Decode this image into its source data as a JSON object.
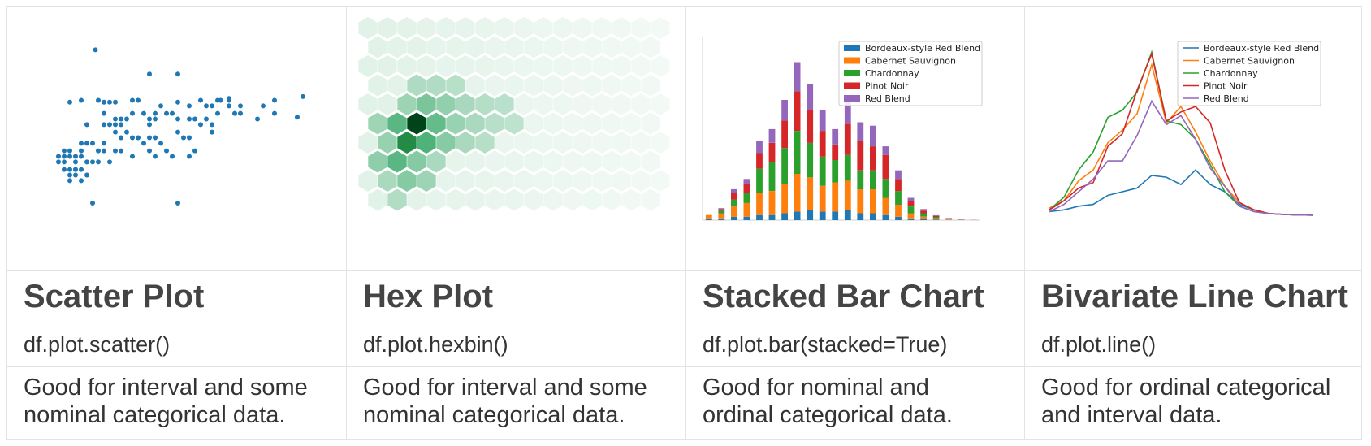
{
  "columns": [
    {
      "title": "Scatter Plot",
      "code": "df.plot.scatter()",
      "desc_line1": "Good for interval and some",
      "desc_line2": "nominal categorical data."
    },
    {
      "title": "Hex Plot",
      "code": "df.plot.hexbin()",
      "desc_line1": "Good for interval and some",
      "desc_line2": "nominal categorical data."
    },
    {
      "title": "Stacked Bar Chart",
      "code": "df.plot.bar(stacked=True)",
      "desc_line1": "Good for nominal and",
      "desc_line2": "ordinal categorical data."
    },
    {
      "title": "Bivariate Line Chart",
      "code": "df.plot.line()",
      "desc_line1": "Good for ordinal categorical",
      "desc_line2": "and interval data."
    }
  ],
  "colors": {
    "scatter": "#1f77b4",
    "hex_base": "#2ca25f",
    "series": [
      "#1f77b4",
      "#ff7f0e",
      "#2ca02c",
      "#d62728",
      "#9467bd"
    ]
  },
  "chart_data": [
    {
      "type": "scatter",
      "points": [
        [
          2.3,
          9.2
        ],
        [
          4.2,
          7.9
        ],
        [
          5.2,
          7.9
        ],
        [
          7.0,
          6.5
        ],
        [
          6.7,
          6.5
        ],
        [
          8.0,
          5.5
        ],
        [
          5.2,
          6.4
        ],
        [
          2.6,
          6.4
        ],
        [
          1.4,
          6.4
        ],
        [
          6.2,
          5.5
        ],
        [
          5.0,
          5.8
        ],
        [
          4.8,
          5.8
        ],
        [
          5.2,
          5.5
        ],
        [
          5.6,
          5.5
        ],
        [
          5.8,
          5.5
        ],
        [
          6.4,
          4.8
        ],
        [
          6.4,
          5.2
        ],
        [
          5.2,
          4.8
        ],
        [
          3.0,
          4.8
        ],
        [
          3.4,
          4.8
        ],
        [
          3.6,
          4.5
        ],
        [
          4.2,
          4.5
        ],
        [
          4.4,
          4.5
        ],
        [
          3.8,
          4.5
        ],
        [
          3.2,
          4.5
        ],
        [
          2.2,
          4.2
        ],
        [
          2.0,
          4.2
        ],
        [
          1.8,
          4.2
        ],
        [
          2.6,
          4.2
        ],
        [
          2.6,
          3.8
        ],
        [
          2.4,
          3.8
        ],
        [
          3.0,
          3.8
        ],
        [
          4.2,
          3.8
        ],
        [
          3.6,
          3.5
        ],
        [
          4.4,
          3.5
        ],
        [
          1.6,
          3.5
        ],
        [
          1.4,
          3.5
        ],
        [
          1.2,
          3.5
        ],
        [
          1.0,
          3.5
        ],
        [
          1.6,
          2.8
        ],
        [
          1.8,
          2.8
        ],
        [
          1.4,
          2.8
        ],
        [
          2.2,
          3.2
        ],
        [
          2.0,
          3.2
        ],
        [
          1.2,
          3.2
        ],
        [
          1.0,
          3.2
        ],
        [
          1.2,
          2.8
        ],
        [
          1.4,
          2.5
        ],
        [
          1.8,
          2.2
        ],
        [
          1.4,
          2.2
        ],
        [
          1.6,
          2.5
        ],
        [
          2.2,
          1.0
        ],
        [
          5.2,
          1.0
        ],
        [
          2.0,
          2.5
        ],
        [
          1.6,
          2.8
        ],
        [
          4.8,
          3.8
        ],
        [
          5.0,
          3.5
        ],
        [
          5.6,
          3.5
        ],
        [
          5.8,
          3.8
        ],
        [
          2.4,
          3.2
        ],
        [
          2.8,
          3.2
        ],
        [
          3.2,
          3.8
        ],
        [
          4.0,
          4.2
        ],
        [
          4.6,
          4.2
        ],
        [
          4.0,
          5.8
        ],
        [
          3.6,
          5.8
        ],
        [
          4.4,
          5.5
        ],
        [
          3.4,
          5.5
        ],
        [
          3.6,
          6.5
        ],
        [
          3.8,
          6.5
        ],
        [
          4.4,
          5.8
        ],
        [
          4.6,
          6.2
        ],
        [
          5.4,
          4.5
        ],
        [
          5.6,
          4.5
        ],
        [
          6.4,
          6.2
        ],
        [
          6.6,
          5.8
        ],
        [
          7.0,
          6.2
        ],
        [
          7.4,
          6.2
        ],
        [
          7.2,
          5.8
        ],
        [
          7.4,
          5.8
        ],
        [
          8.2,
          6.2
        ],
        [
          8.6,
          5.8
        ],
        [
          8.6,
          6.5
        ],
        [
          1.8,
          6.5
        ],
        [
          2.4,
          6.5
        ],
        [
          2.8,
          6.4
        ],
        [
          3.0,
          6.4
        ],
        [
          3.0,
          5.2
        ],
        [
          2.8,
          5.2
        ],
        [
          2.6,
          5.2
        ],
        [
          2.0,
          5.2
        ],
        [
          2.6,
          5.8
        ],
        [
          3.2,
          5.5
        ],
        [
          3.2,
          5.2
        ],
        [
          4.2,
          5.2
        ],
        [
          4.2,
          5.5
        ],
        [
          3.0,
          5.5
        ],
        [
          1.2,
          3.8
        ],
        [
          1.4,
          3.8
        ],
        [
          1.8,
          3.8
        ],
        [
          1.6,
          3.2
        ],
        [
          1.8,
          3.5
        ],
        [
          6.0,
          6.5
        ],
        [
          6.0,
          5.2
        ],
        [
          6.2,
          6.2
        ],
        [
          6.6,
          6.5
        ],
        [
          5.6,
          6.2
        ],
        [
          7.0,
          6.6
        ],
        [
          9.6,
          6.7
        ],
        [
          9.4,
          5.6
        ]
      ]
    },
    {
      "type": "heatmap",
      "hexes": [
        {
          "col": 2,
          "row": 2,
          "v": 1.0
        },
        {
          "col": 1,
          "row": 3,
          "v": 0.8
        },
        {
          "col": 2,
          "row": 3,
          "v": 0.55
        },
        {
          "col": 1,
          "row": 2,
          "v": 0.5
        },
        {
          "col": 3,
          "row": 2,
          "v": 0.45
        },
        {
          "col": 2,
          "row": 1,
          "v": 0.35
        },
        {
          "col": 1,
          "row": 4,
          "v": 0.5
        },
        {
          "col": 2,
          "row": 4,
          "v": 0.3
        },
        {
          "col": 3,
          "row": 3,
          "v": 0.3
        },
        {
          "col": 3,
          "row": 1,
          "v": 0.25
        },
        {
          "col": 4,
          "row": 2,
          "v": 0.22
        },
        {
          "col": 0,
          "row": 3,
          "v": 0.22
        },
        {
          "col": 0,
          "row": 4,
          "v": 0.25
        },
        {
          "col": 1,
          "row": 5,
          "v": 0.3
        },
        {
          "col": 2,
          "row": 5,
          "v": 0.2
        },
        {
          "col": 0,
          "row": 2,
          "v": 0.18
        },
        {
          "col": 1,
          "row": 1,
          "v": 0.2
        },
        {
          "col": 4,
          "row": 1,
          "v": 0.15
        },
        {
          "col": 5,
          "row": 2,
          "v": 0.14
        },
        {
          "col": 4,
          "row": 3,
          "v": 0.14
        },
        {
          "col": 3,
          "row": 4,
          "v": 0.14
        },
        {
          "col": 0,
          "row": 5,
          "v": 0.13
        },
        {
          "col": 2,
          "row": 0,
          "v": 0.12
        },
        {
          "col": 3,
          "row": 0,
          "v": 0.12
        },
        {
          "col": 5,
          "row": 1,
          "v": 0.1
        },
        {
          "col": 6,
          "row": 2,
          "v": 0.09
        },
        {
          "col": 5,
          "row": 3,
          "v": 0.09
        },
        {
          "col": 6,
          "row": 1,
          "v": 0.08
        },
        {
          "col": 7,
          "row": 2,
          "v": 0.07
        },
        {
          "col": 4,
          "row": 0,
          "v": 0.08
        },
        {
          "col": 1,
          "row": 6,
          "v": 0.1
        }
      ]
    },
    {
      "type": "bar",
      "series": [
        {
          "name": "Bordeaux-style Red Blend",
          "values": [
            1,
            1,
            2,
            2,
            3,
            3,
            4,
            5,
            6,
            5,
            5,
            6,
            4,
            4,
            3,
            2,
            1,
            0.5,
            0.3,
            0.1,
            0,
            0
          ]
        },
        {
          "name": "Cabernet Sauvignon",
          "values": [
            2,
            3,
            6,
            8,
            13,
            14,
            17,
            22,
            19,
            15,
            17,
            17,
            14,
            14,
            10,
            7,
            3,
            1.5,
            0.8,
            0.3,
            0.1,
            0
          ]
        },
        {
          "name": "Chardonnay",
          "values": [
            0,
            1.5,
            4,
            6,
            14,
            17,
            21,
            25,
            20,
            17,
            13,
            15,
            11,
            11,
            11,
            8,
            4,
            2,
            0.8,
            0.4,
            0.1,
            0
          ]
        },
        {
          "name": "Pinot Noir",
          "values": [
            0,
            1,
            4,
            5,
            9,
            11,
            16,
            23,
            19,
            15,
            9,
            18,
            17,
            14,
            14,
            7,
            3,
            1.5,
            0.6,
            0.3,
            0.1,
            0.1
          ]
        },
        {
          "name": "Red Blend",
          "values": [
            0,
            0.5,
            2,
            3,
            7,
            8,
            12,
            17,
            15,
            12,
            9,
            14,
            11,
            12,
            5,
            5,
            2,
            1,
            0.4,
            0.2,
            0.1,
            0
          ]
        }
      ],
      "ylim": [
        0,
        105
      ],
      "legend": "top-right"
    },
    {
      "type": "line",
      "series": [
        {
          "name": "Bordeaux-style Red Blend",
          "values": [
            2,
            3,
            5,
            6,
            11,
            13,
            15,
            22,
            21,
            17,
            25,
            17,
            13,
            6,
            3,
            1,
            0.5,
            0.2,
            0.1
          ]
        },
        {
          "name": "Cabernet Sauvignon",
          "values": [
            4,
            8,
            19,
            25,
            40,
            47,
            56,
            83,
            51,
            60,
            46,
            30,
            16,
            7,
            3,
            1,
            0.5,
            0.2,
            0.1
          ]
        },
        {
          "name": "Chardonnay",
          "values": [
            3,
            10,
            25,
            35,
            54,
            58,
            68,
            90,
            52,
            50,
            42,
            28,
            13,
            5,
            2,
            1,
            0.5,
            0.2,
            0.1
          ]
        },
        {
          "name": "Pinot Noir",
          "values": [
            3,
            8,
            15,
            18,
            38,
            45,
            69,
            89,
            52,
            57,
            60,
            51,
            25,
            7,
            3,
            1,
            0.5,
            0.2,
            0.1
          ]
        },
        {
          "name": "Red Blend",
          "values": [
            2,
            6,
            13,
            20,
            30,
            30,
            44,
            63,
            50,
            55,
            42,
            26,
            16,
            5,
            2,
            1,
            0.5,
            0.2,
            0.1
          ]
        }
      ],
      "ylim": [
        0,
        95
      ],
      "legend": "top-right"
    }
  ]
}
